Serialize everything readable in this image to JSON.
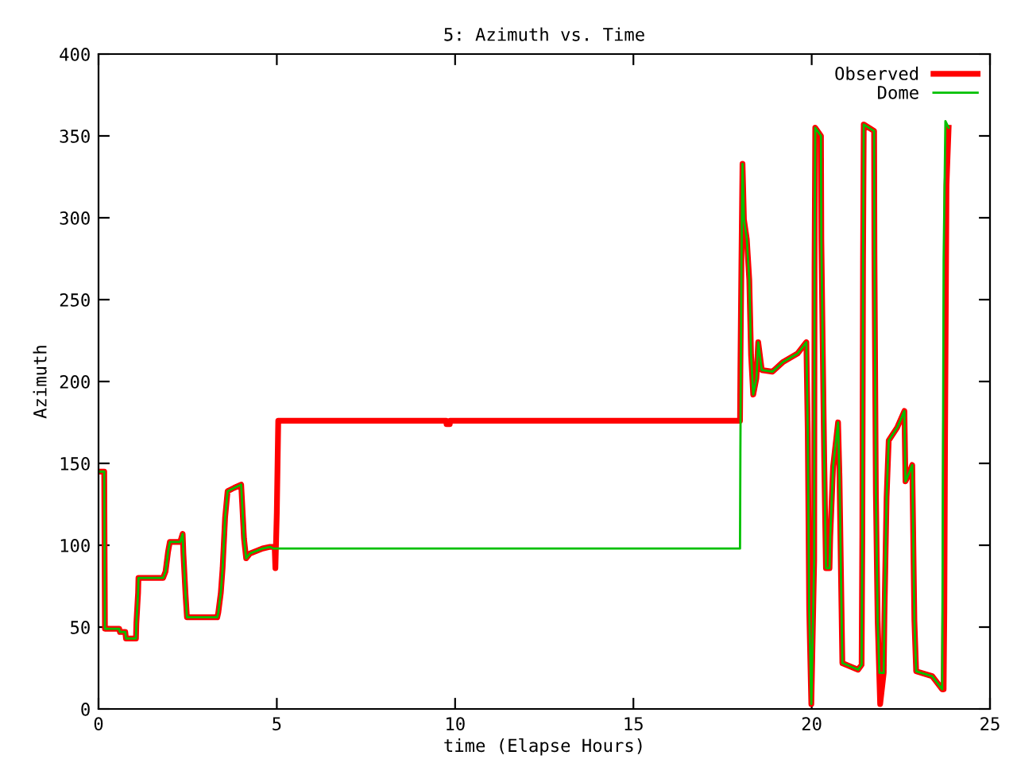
{
  "chart_data": {
    "type": "line",
    "title": "5: Azimuth vs. Time",
    "xlabel": "time (Elapse Hours)",
    "ylabel": "Azimuth",
    "xlim": [
      0,
      25
    ],
    "ylim": [
      0,
      400
    ],
    "xticks": [
      0,
      5,
      10,
      15,
      20,
      25
    ],
    "yticks": [
      0,
      50,
      100,
      150,
      200,
      250,
      300,
      350,
      400
    ],
    "grid": false,
    "legend": "top right",
    "marker": "none",
    "line_style": "solid",
    "series": [
      {
        "name": "Observed",
        "color": "#ff0000",
        "x": [
          0,
          0.16,
          0.17,
          0.18,
          0.58,
          0.6,
          0.75,
          0.77,
          1.05,
          1.06,
          1.11,
          1.12,
          1.81,
          1.88,
          1.95,
          2.0,
          2.29,
          2.36,
          2.38,
          2.44,
          2.48,
          3.33,
          3.36,
          3.43,
          3.48,
          3.55,
          3.62,
          3.8,
          4.0,
          4.03,
          4.08,
          4.14,
          4.25,
          4.6,
          4.81,
          4.94,
          4.96,
          5.0,
          5.04,
          9.75,
          9.76,
          9.85,
          9.86,
          17.99,
          18.0,
          18.03,
          18.06,
          18.1,
          18.18,
          18.25,
          18.3,
          18.36,
          18.45,
          18.5,
          18.6,
          18.9,
          19.2,
          19.6,
          19.85,
          19.89,
          19.93,
          19.99,
          20.07,
          20.08,
          20.1,
          20.26,
          20.27,
          20.35,
          20.4,
          20.5,
          20.52,
          20.6,
          20.74,
          20.78,
          20.86,
          21.3,
          21.4,
          21.42,
          21.44,
          21.46,
          21.75,
          21.76,
          21.8,
          21.85,
          21.92,
          22.02,
          22.04,
          22.1,
          22.16,
          22.4,
          22.6,
          22.63,
          22.75,
          22.82,
          22.88,
          22.93,
          23.38,
          23.66,
          23.7,
          23.72,
          23.74,
          23.78,
          23.84
        ],
        "values": [
          145,
          145,
          98,
          49,
          49,
          47,
          47,
          43,
          43,
          52,
          71,
          80,
          80,
          84,
          96,
          102,
          102,
          107,
          95,
          70,
          56,
          56,
          59,
          71,
          86,
          117,
          133,
          135,
          137,
          125,
          104,
          92,
          95,
          98,
          99,
          99,
          86,
          120,
          176,
          176,
          174,
          174,
          176,
          176,
          206,
          274,
          333,
          299,
          287,
          262,
          216,
          192,
          202,
          224,
          207,
          206,
          212,
          217,
          224,
          169,
          61,
          3,
          91,
          269,
          355,
          350,
          287,
          154,
          86,
          86,
          105,
          148,
          175,
          141,
          28,
          24,
          27,
          107,
          274,
          357,
          353,
          277,
          132,
          54,
          3,
          22,
          57,
          129,
          164,
          172,
          182,
          139,
          145,
          149,
          54,
          23,
          20,
          12,
          12,
          60,
          165,
          320,
          355
        ]
      },
      {
        "name": "Dome",
        "color": "#00c000",
        "x": [
          0,
          0.16,
          0.17,
          0.18,
          0.58,
          0.6,
          0.75,
          0.77,
          1.05,
          1.06,
          1.11,
          1.12,
          1.81,
          1.88,
          1.95,
          2.0,
          2.29,
          2.36,
          2.38,
          2.44,
          2.48,
          3.33,
          3.36,
          3.43,
          3.48,
          3.55,
          3.62,
          3.8,
          4.0,
          4.03,
          4.08,
          4.14,
          4.25,
          4.6,
          4.81,
          4.9,
          17.99,
          18.0,
          18.03,
          18.06,
          18.1,
          18.18,
          18.25,
          18.3,
          18.36,
          18.45,
          18.5,
          18.6,
          18.9,
          19.2,
          19.6,
          19.85,
          19.89,
          19.93,
          19.99,
          20.07,
          20.08,
          20.1,
          20.26,
          20.27,
          20.35,
          20.4,
          20.5,
          20.52,
          20.6,
          20.74,
          20.78,
          20.86,
          21.3,
          21.4,
          21.42,
          21.44,
          21.46,
          21.75,
          21.76,
          21.8,
          21.85,
          21.9,
          22.02,
          22.04,
          22.1,
          22.16,
          22.4,
          22.6,
          22.63,
          22.75,
          22.82,
          22.88,
          22.93,
          23.38,
          23.66,
          23.7,
          23.75,
          23.84
        ],
        "values": [
          145,
          145,
          98,
          49,
          49,
          47,
          47,
          43,
          43,
          52,
          71,
          80,
          80,
          84,
          96,
          102,
          102,
          107,
          95,
          70,
          56,
          56,
          59,
          71,
          86,
          117,
          133,
          135,
          137,
          125,
          104,
          92,
          95,
          98,
          99,
          98,
          98,
          156,
          274,
          333,
          299,
          287,
          262,
          216,
          192,
          202,
          224,
          207,
          206,
          212,
          217,
          224,
          169,
          61,
          3,
          91,
          269,
          355,
          350,
          287,
          154,
          86,
          86,
          105,
          148,
          175,
          141,
          28,
          24,
          27,
          107,
          274,
          357,
          353,
          277,
          132,
          54,
          22,
          22,
          57,
          129,
          164,
          172,
          182,
          139,
          145,
          149,
          54,
          23,
          20,
          12,
          274,
          359,
          355
        ]
      }
    ]
  }
}
